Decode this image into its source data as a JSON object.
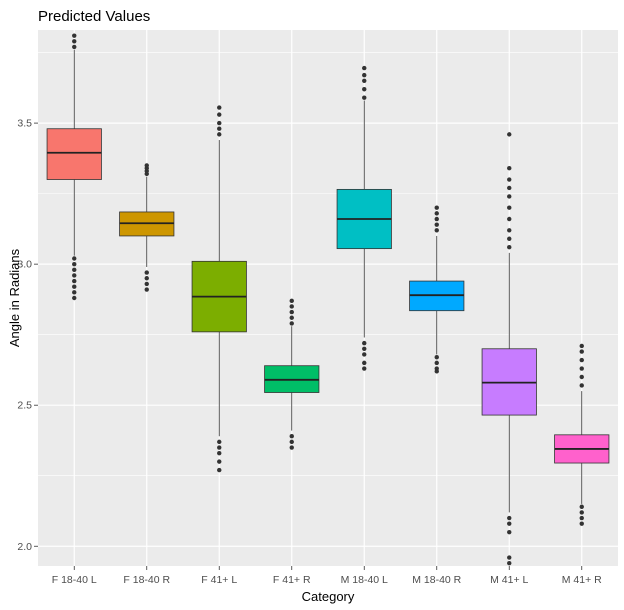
{
  "chart_data": {
    "type": "box",
    "title": "Predicted Values",
    "xlabel": "Category",
    "ylabel": "Angle in Radians",
    "ylim": [
      1.93,
      3.83
    ],
    "yticks": [
      2.0,
      2.5,
      3.0,
      3.5
    ],
    "ytick_labels": [
      "2.0",
      "2.5",
      "3.0",
      "3.5"
    ],
    "grid": true,
    "panel_background": "#EBEBEB",
    "categories": [
      "F 18-40 L",
      "F 18-40 R",
      "F 41+ L",
      "F 41+ R",
      "M 18-40 L",
      "M 18-40 R",
      "M 41+ L",
      "M 41+ R"
    ],
    "boxes": [
      {
        "category": "F 18-40 L",
        "color": "#F8766D",
        "q1": 3.3,
        "median": 3.395,
        "q3": 3.48,
        "whisker_low": 3.03,
        "whisker_high": 3.76,
        "outliers": [
          3.02,
          3.0,
          2.98,
          2.96,
          2.94,
          2.92,
          2.9,
          2.88,
          3.77,
          3.79,
          3.81
        ]
      },
      {
        "category": "F 18-40 R",
        "color": "#CD9600",
        "q1": 3.1,
        "median": 3.145,
        "q3": 3.185,
        "whisker_low": 2.99,
        "whisker_high": 3.31,
        "outliers": [
          2.97,
          2.95,
          2.93,
          2.91,
          3.32,
          3.33,
          3.34,
          3.35
        ]
      },
      {
        "category": "F 41+ L",
        "color": "#7CAE00",
        "q1": 2.76,
        "median": 2.885,
        "q3": 3.01,
        "whisker_low": 2.39,
        "whisker_high": 3.44,
        "outliers": [
          2.37,
          2.35,
          2.33,
          2.3,
          2.27,
          3.46,
          3.48,
          3.5,
          3.53,
          3.555
        ]
      },
      {
        "category": "F 41+ R",
        "color": "#00BE67",
        "q1": 2.545,
        "median": 2.59,
        "q3": 2.64,
        "whisker_low": 2.41,
        "whisker_high": 2.78,
        "outliers": [
          2.39,
          2.37,
          2.35,
          2.79,
          2.81,
          2.83,
          2.85,
          2.87
        ]
      },
      {
        "category": "M 18-40 L",
        "color": "#00BFC4",
        "q1": 3.055,
        "median": 3.16,
        "q3": 3.265,
        "whisker_low": 2.74,
        "whisker_high": 3.58,
        "outliers": [
          2.72,
          2.7,
          2.68,
          2.65,
          2.63,
          3.59,
          3.62,
          3.65,
          3.67,
          3.695
        ]
      },
      {
        "category": "M 18-40 R",
        "color": "#00A9FF",
        "q1": 2.835,
        "median": 2.89,
        "q3": 2.94,
        "whisker_low": 2.68,
        "whisker_high": 3.1,
        "outliers": [
          2.67,
          2.65,
          2.63,
          2.62,
          3.12,
          3.14,
          3.16,
          3.18,
          3.2
        ]
      },
      {
        "category": "M 41+ L",
        "color": "#C77CFF",
        "q1": 2.465,
        "median": 2.58,
        "q3": 2.7,
        "whisker_low": 2.12,
        "whisker_high": 3.04,
        "outliers": [
          2.1,
          2.08,
          2.05,
          1.96,
          1.94,
          3.06,
          3.09,
          3.12,
          3.16,
          3.2,
          3.24,
          3.27,
          3.3,
          3.34,
          3.46
        ]
      },
      {
        "category": "M 41+ R",
        "color": "#FF61CC",
        "q1": 2.295,
        "median": 2.345,
        "q3": 2.395,
        "whisker_low": 2.15,
        "whisker_high": 2.55,
        "outliers": [
          2.14,
          2.12,
          2.1,
          2.08,
          2.57,
          2.6,
          2.63,
          2.66,
          2.69,
          2.71
        ]
      }
    ]
  }
}
